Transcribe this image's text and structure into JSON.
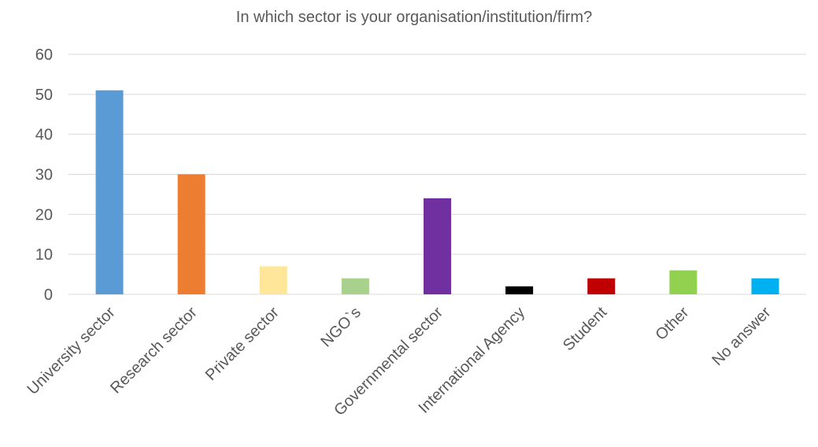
{
  "chart_data": {
    "type": "bar",
    "title": "In which sector is your organisation/institution/firm?",
    "xlabel": "",
    "ylabel": "",
    "categories": [
      "University sector",
      "Research sector",
      "Private sector",
      "NGO`s",
      "Governmental sector",
      "International Agency",
      "Student",
      "Other",
      "No answer"
    ],
    "values": [
      51,
      30,
      7,
      4,
      24,
      2,
      4,
      6,
      4
    ],
    "colors": [
      "#5b9bd5",
      "#ed7d31",
      "#ffe699",
      "#a9d18e",
      "#7030a0",
      "#000000",
      "#c00000",
      "#92d050",
      "#00b0f0"
    ],
    "ylim": [
      0,
      60
    ],
    "yticks": [
      0,
      10,
      20,
      30,
      40,
      50,
      60
    ],
    "grid": true,
    "legend": "none"
  }
}
